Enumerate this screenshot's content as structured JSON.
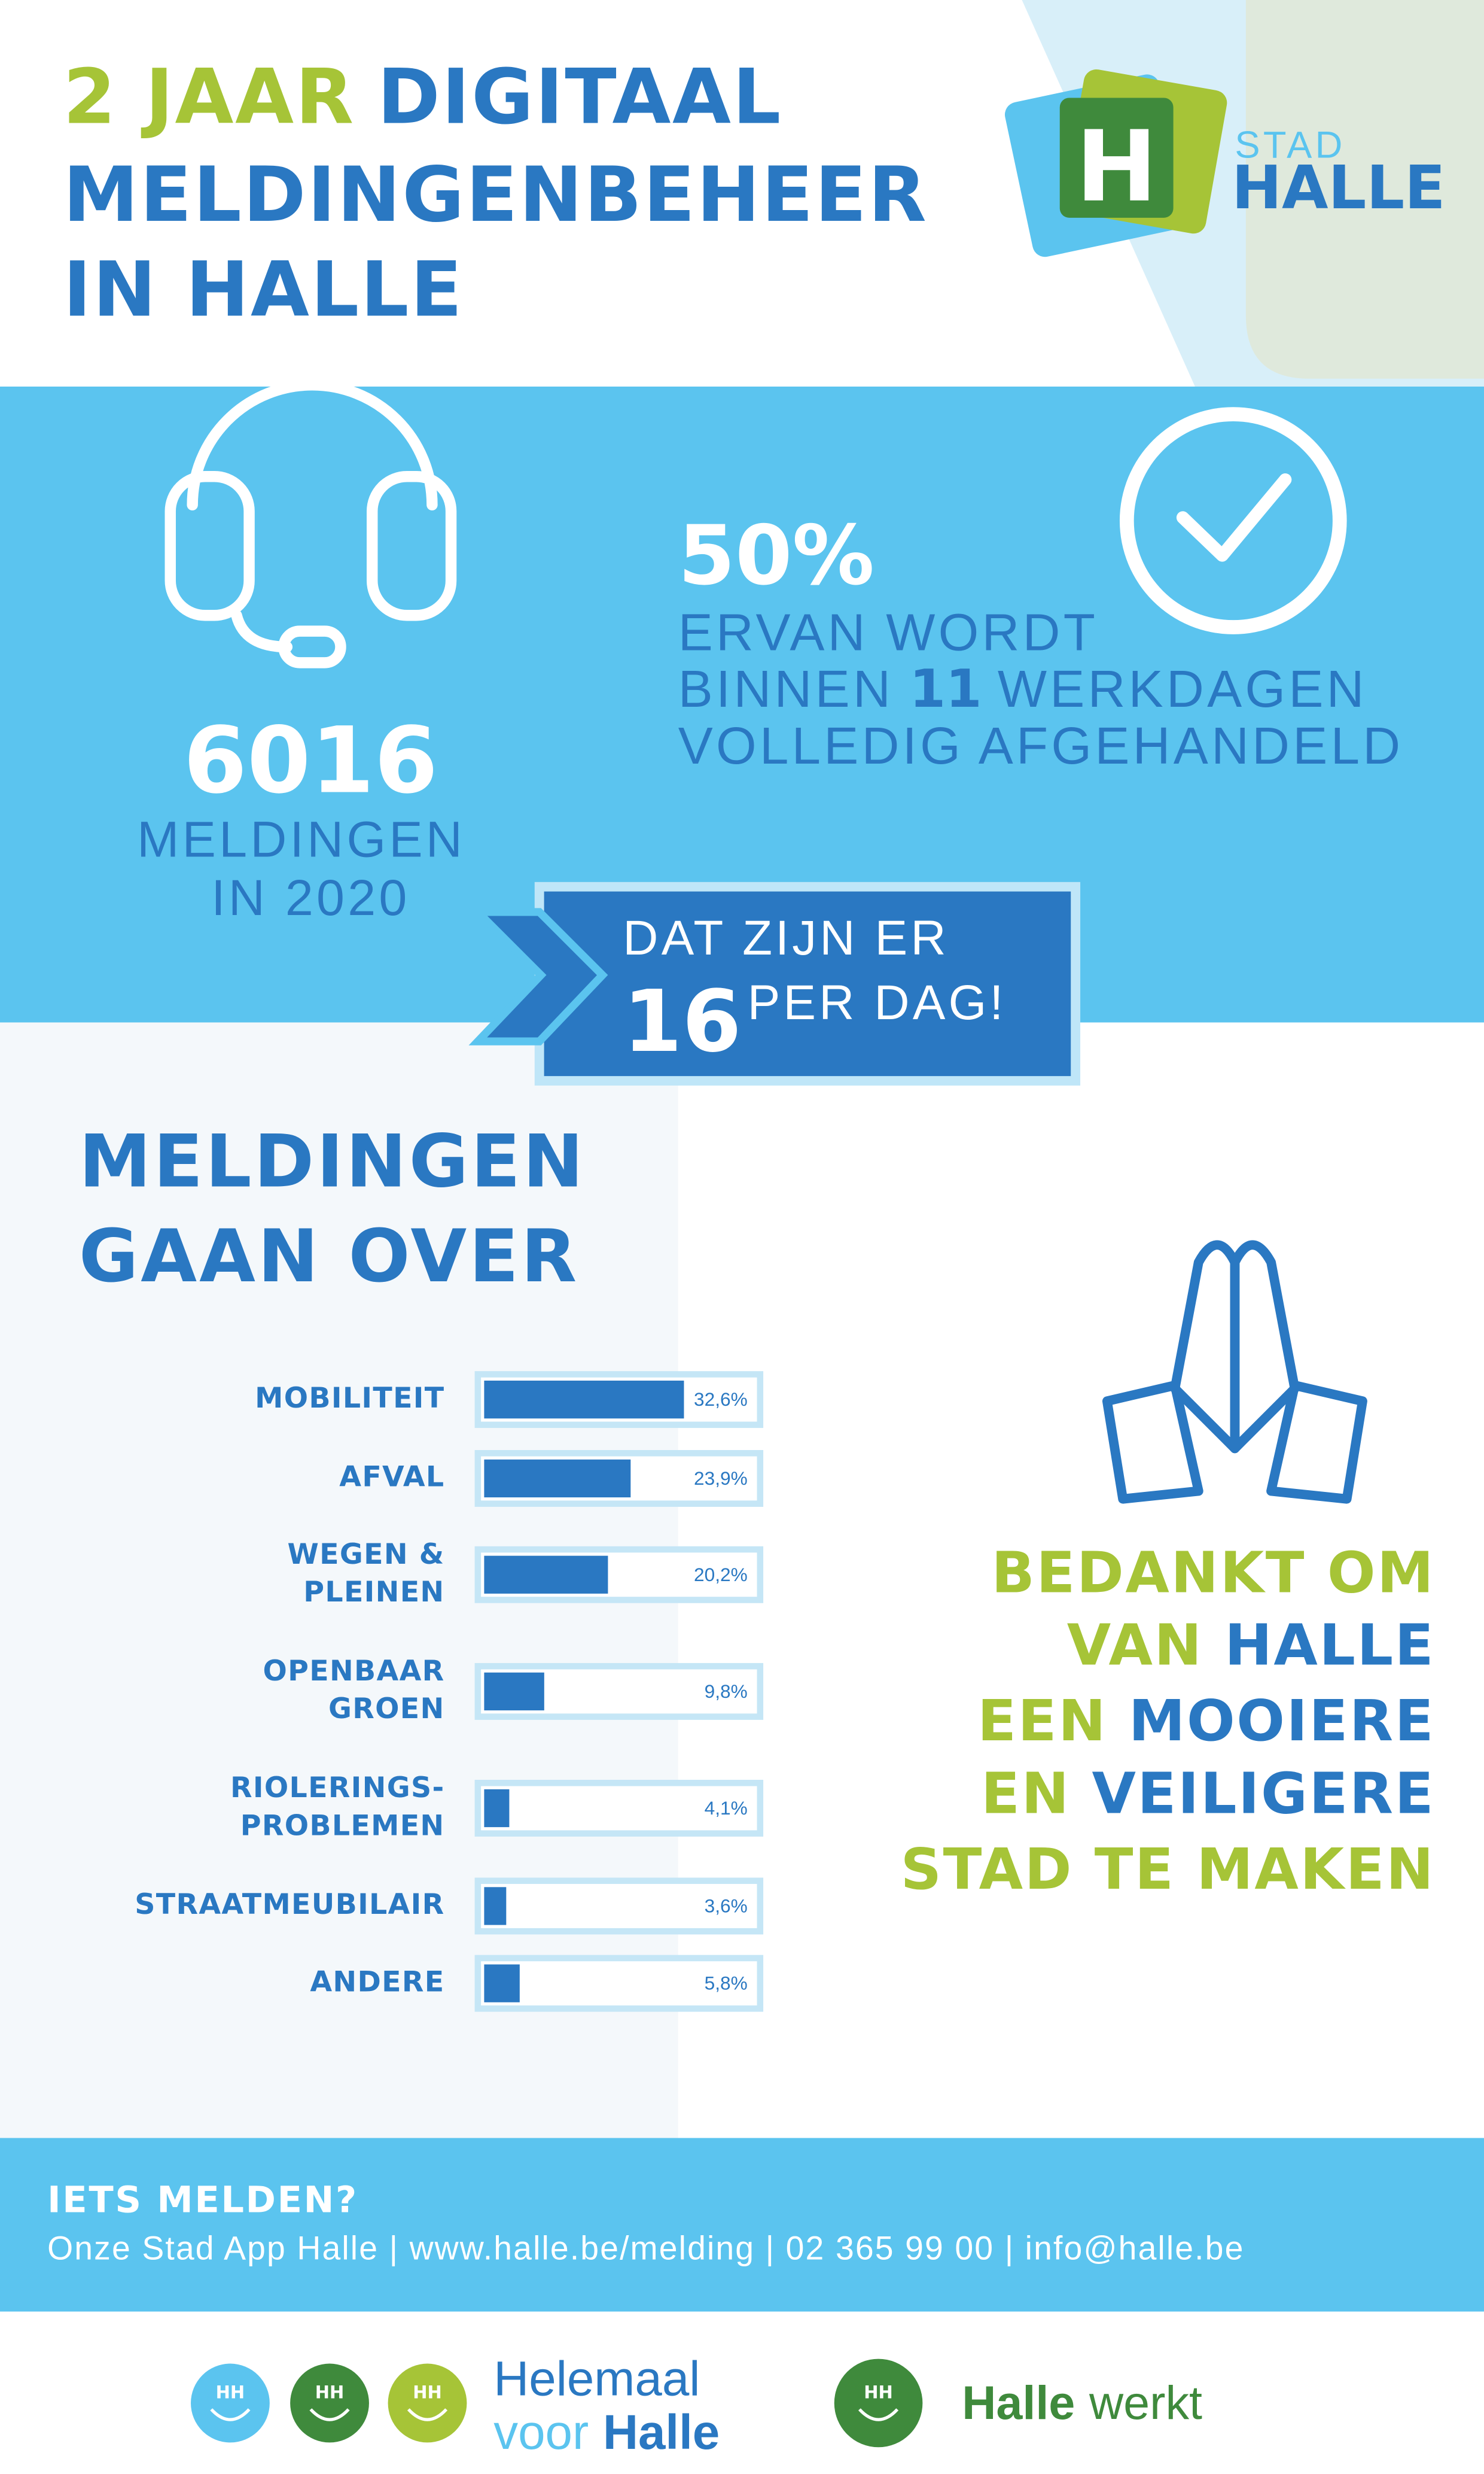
{
  "header": {
    "title_accent": "2 JAAR",
    "title_line1": "DIGITAAL",
    "title_line2": "MELDINGENBEHEER",
    "title_line3": "IN HALLE"
  },
  "logo": {
    "mark": "H",
    "top": "STAD",
    "bottom": "HALLE"
  },
  "reports": {
    "count": 6016,
    "line1": "MELDINGEN",
    "line2": "IN 2020"
  },
  "resolved": {
    "percent_label": "50%",
    "line1": "ERVAN WORDT",
    "line2_pre": "BINNEN",
    "days": 11,
    "line2_post": "WERKDAGEN",
    "line3": "VOLLEDIG AFGEHANDELD"
  },
  "per_day": {
    "line1": "DAT ZIJN ER",
    "count": 16,
    "suffix": "PER DAG!"
  },
  "chart_data": {
    "type": "bar",
    "orientation": "horizontal",
    "title_lines": [
      "MELDINGEN",
      "GAAN OVER"
    ],
    "categories": [
      "MOBILITEIT",
      "AFVAL",
      "WEGEN &\nPLEINEN",
      "OPENBAAR\nGROEN",
      "RIOLERINGS-\nPROBLEMEN",
      "STRAATMEUBILAIR",
      "ANDERE"
    ],
    "values": [
      32.6,
      23.9,
      20.2,
      9.8,
      4.1,
      3.6,
      5.8
    ],
    "value_labels": [
      "32,6%",
      "23,9%",
      "20,2%",
      "9,8%",
      "4,1%",
      "3,6%",
      "5,8%"
    ],
    "xlim": [
      0,
      44
    ],
    "color": "#2a78c2"
  },
  "thanks": {
    "lines": [
      [
        {
          "text": "BEDANKT OM",
          "color": "#a6c437"
        }
      ],
      [
        {
          "text": "VAN",
          "color": "#a6c437"
        },
        {
          "text": "HALLE",
          "color": "#2a78c2"
        }
      ],
      [
        {
          "text": "EEN",
          "color": "#a6c437"
        },
        {
          "text": "MOOIERE",
          "color": "#2a78c2"
        }
      ],
      [
        {
          "text": "EN",
          "color": "#a6c437"
        },
        {
          "text": "VEILIGERE",
          "color": "#2a78c2"
        }
      ],
      [
        {
          "text": "STAD TE MAKEN",
          "color": "#a6c437"
        }
      ]
    ]
  },
  "footer": {
    "title": "IETS MELDEN?",
    "contact": "Onze Stad App Halle | www.halle.be/melding | 02 365 99 00 | info@halle.be"
  },
  "brands": {
    "badge": "HH",
    "helemaal": "Helemaal",
    "voor": "voor",
    "halle": "Halle",
    "werkt_halle": "Halle",
    "werkt": "werkt"
  }
}
